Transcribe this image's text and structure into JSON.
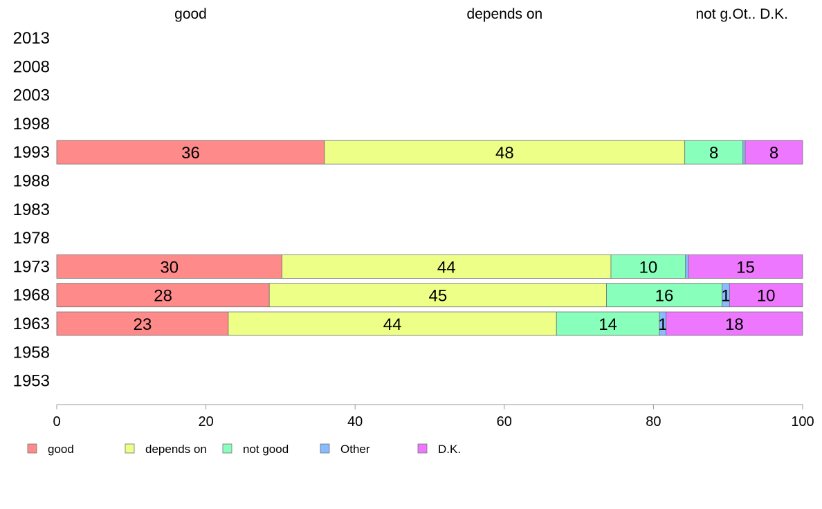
{
  "chart_data": {
    "type": "bar",
    "orientation": "horizontal",
    "stacked": true,
    "categories": [
      "2013",
      "2008",
      "2003",
      "1998",
      "1993",
      "1988",
      "1983",
      "1978",
      "1973",
      "1968",
      "1963",
      "1958",
      "1953"
    ],
    "top_labels": [
      "good",
      "depends on",
      "not g.",
      "Ot..",
      "D.K."
    ],
    "xlim": [
      0,
      100
    ],
    "xticks": [
      0,
      20,
      40,
      60,
      80,
      100
    ],
    "legend_position": "bottom",
    "series": [
      {
        "name": "good",
        "color": "#ff8a8a",
        "values": [
          null,
          null,
          null,
          null,
          35.9,
          null,
          null,
          null,
          30.2,
          28.5,
          23.0,
          null,
          null
        ],
        "labels": [
          "",
          "",
          "",
          "",
          "36",
          "",
          "",
          "",
          "30",
          "28",
          "23",
          "",
          ""
        ]
      },
      {
        "name": "depends on",
        "color": "#eeff88",
        "values": [
          null,
          null,
          null,
          null,
          48.3,
          null,
          null,
          null,
          44.1,
          45.2,
          44.0,
          null,
          null
        ],
        "labels": [
          "",
          "",
          "",
          "",
          "48",
          "",
          "",
          "",
          "44",
          "45",
          "44",
          "",
          ""
        ]
      },
      {
        "name": "not good",
        "color": "#88ffbb",
        "values": [
          null,
          null,
          null,
          null,
          7.8,
          null,
          null,
          null,
          10.0,
          15.5,
          13.8,
          null,
          null
        ],
        "labels": [
          "",
          "",
          "",
          "",
          "8",
          "",
          "",
          "",
          "10",
          "16",
          "14",
          "",
          ""
        ]
      },
      {
        "name": "Other",
        "color": "#88bbff",
        "values": [
          null,
          null,
          null,
          null,
          0.3,
          null,
          null,
          null,
          0.4,
          1.0,
          0.9,
          null,
          null
        ],
        "labels": [
          "",
          "",
          "",
          "",
          "",
          "",
          "",
          "",
          "",
          "1",
          "1",
          "",
          ""
        ]
      },
      {
        "name": "D.K.",
        "color": "#ee77ff",
        "values": [
          null,
          null,
          null,
          null,
          7.7,
          null,
          null,
          null,
          15.3,
          9.8,
          18.3,
          null,
          null
        ],
        "labels": [
          "",
          "",
          "",
          "",
          "8",
          "",
          "",
          "",
          "15",
          "10",
          "18",
          "",
          ""
        ]
      }
    ]
  }
}
